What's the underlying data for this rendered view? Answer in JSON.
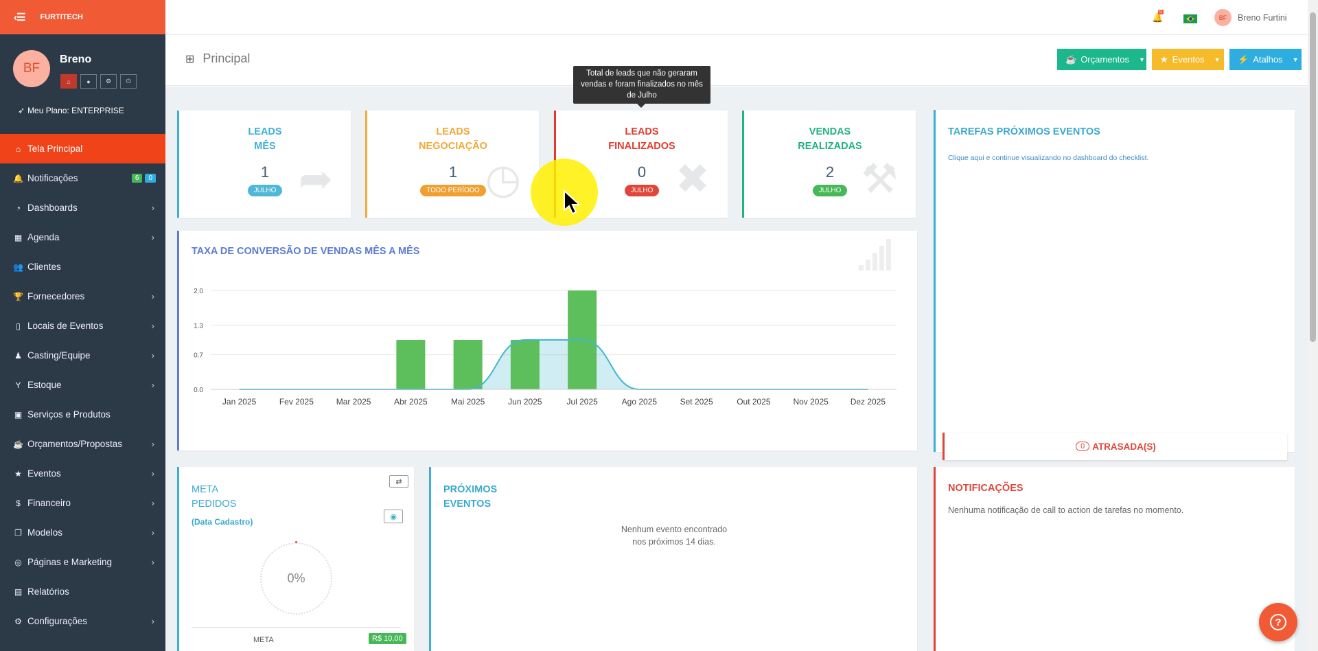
{
  "brand": {
    "name": "FURTITECH"
  },
  "profile": {
    "initials": "BF",
    "name": "Breno",
    "plan": "Meu Plano: ENTERPRISE"
  },
  "sidebar": {
    "items": [
      {
        "label": "Tela Principal",
        "icon": "home-icon",
        "glyph": "⌂",
        "active": true
      },
      {
        "label": "Notificações",
        "icon": "bell-icon",
        "glyph": "🔔",
        "badges": [
          "6",
          "0"
        ]
      },
      {
        "label": "Dashboards",
        "icon": "dashboard-icon",
        "glyph": "◔",
        "chev": true
      },
      {
        "label": "Agenda",
        "icon": "calendar-icon",
        "glyph": "▦",
        "chev": true
      },
      {
        "label": "Clientes",
        "icon": "users-icon",
        "glyph": "👥"
      },
      {
        "label": "Fornecedores",
        "icon": "trophy-icon",
        "glyph": "🏆",
        "chev": true
      },
      {
        "label": "Locais de Eventos",
        "icon": "building-icon",
        "glyph": "▯",
        "chev": true
      },
      {
        "label": "Casting/Equipe",
        "icon": "person-icon",
        "glyph": "♟",
        "chev": true
      },
      {
        "label": "Estoque",
        "icon": "glass-icon",
        "glyph": "Y",
        "chev": true
      },
      {
        "label": "Serviços e Produtos",
        "icon": "box-icon",
        "glyph": "▣"
      },
      {
        "label": "Orçamentos/Propostas",
        "icon": "coffee-icon",
        "glyph": "☕",
        "chev": true
      },
      {
        "label": "Eventos",
        "icon": "star-icon",
        "glyph": "★",
        "chev": true
      },
      {
        "label": "Financeiro",
        "icon": "dollar-icon",
        "glyph": "$",
        "chev": true
      },
      {
        "label": "Modelos",
        "icon": "files-icon",
        "glyph": "❐",
        "chev": true
      },
      {
        "label": "Páginas e Marketing",
        "icon": "target-icon",
        "glyph": "◎",
        "chev": true
      },
      {
        "label": "Relatórios",
        "icon": "chart-icon",
        "glyph": "▤"
      },
      {
        "label": "Configurações",
        "icon": "gear-icon",
        "glyph": "⚙",
        "chev": true
      }
    ]
  },
  "topbar": {
    "notif_count": "0",
    "user_initials": "BF",
    "user_name": "Breno Furtini"
  },
  "page": {
    "title": "Principal"
  },
  "header_buttons": [
    {
      "label": "Orçamentos",
      "color": "#1bb78d",
      "icon": "coffee-icon",
      "glyph": "☕"
    },
    {
      "label": "Eventos",
      "color": "#f6bb2a",
      "icon": "star-icon",
      "glyph": "★"
    },
    {
      "label": "Atalhos",
      "color": "#2eaee0",
      "icon": "bolt-icon",
      "glyph": "⚡"
    }
  ],
  "stats": [
    {
      "line1": "Leads",
      "line2": "Mês",
      "value": "1",
      "tag": "JULHO",
      "color": "#3dafd6",
      "pill": "#4fb8d8",
      "icon": "share-icon",
      "glyph": "➦"
    },
    {
      "line1": "Leads",
      "line2": "Negociação",
      "value": "1",
      "tag": "TODO PERÍODO",
      "color": "#f3a836",
      "pill": "#f0a030",
      "icon": "clock-icon",
      "glyph": "◷"
    },
    {
      "line1": "Leads",
      "line2": "Finalizados",
      "value": "0",
      "tag": "JULHO",
      "color": "#e23b2e",
      "pill": "#e0463a",
      "icon": "close-circle-icon",
      "glyph": "✖"
    },
    {
      "line1": "Vendas",
      "line2": "Realizadas",
      "value": "2",
      "tag": "JULHO",
      "color": "#20b27f",
      "pill": "#47b857",
      "icon": "gavel-icon",
      "glyph": "⚒"
    }
  ],
  "tooltip": {
    "text": "Total de leads que não geraram vendas e foram finalizados no mês de Julho"
  },
  "tasks": {
    "title": "Tarefas Próximos Eventos",
    "link": "Clique aqui e continue visualizando no dashboard do checklist.",
    "late_count": "0",
    "late_label": "ATRASADA(S)"
  },
  "conversion": {
    "title": "Taxa de Conversão de Vendas Mês a Mês"
  },
  "chart_data": {
    "type": "bar",
    "title": "Taxa de Conversão de Vendas Mês a Mês",
    "categories": [
      "Jan 2025",
      "Fev 2025",
      "Mar 2025",
      "Abr 2025",
      "Mai 2025",
      "Jun 2025",
      "Jul 2025",
      "Ago 2025",
      "Set 2025",
      "Out 2025",
      "Nov 2025",
      "Dez 2025"
    ],
    "series": [
      {
        "values": [
          0,
          0,
          0,
          1,
          1,
          1,
          2,
          0,
          0,
          0,
          0,
          0
        ],
        "color": "#5cbf5c"
      },
      {
        "type": "area",
        "values": [
          0,
          0,
          0,
          0,
          0,
          1,
          1,
          0,
          0,
          0,
          0,
          0
        ],
        "color": "#40b8d0"
      }
    ],
    "yticks": [
      "0.0",
      "0.7",
      "1.3",
      "2.0"
    ],
    "ylim": [
      0,
      2
    ],
    "grid": true
  },
  "meta": {
    "line1": "Meta",
    "line2": "Pedidos",
    "sub": "(Data Cadastro)",
    "percent": "0%",
    "meta_label": "META",
    "meta_value": "R$ 10,00"
  },
  "proximos": {
    "line1": "Próximos",
    "line2": "Eventos",
    "empty1": "Nenhum evento encontrado",
    "empty2": "nos próximos 14 dias."
  },
  "notificacoes": {
    "title": "Notificações",
    "empty": "Nenhuma notificação de call to action de tarefas no momento."
  }
}
